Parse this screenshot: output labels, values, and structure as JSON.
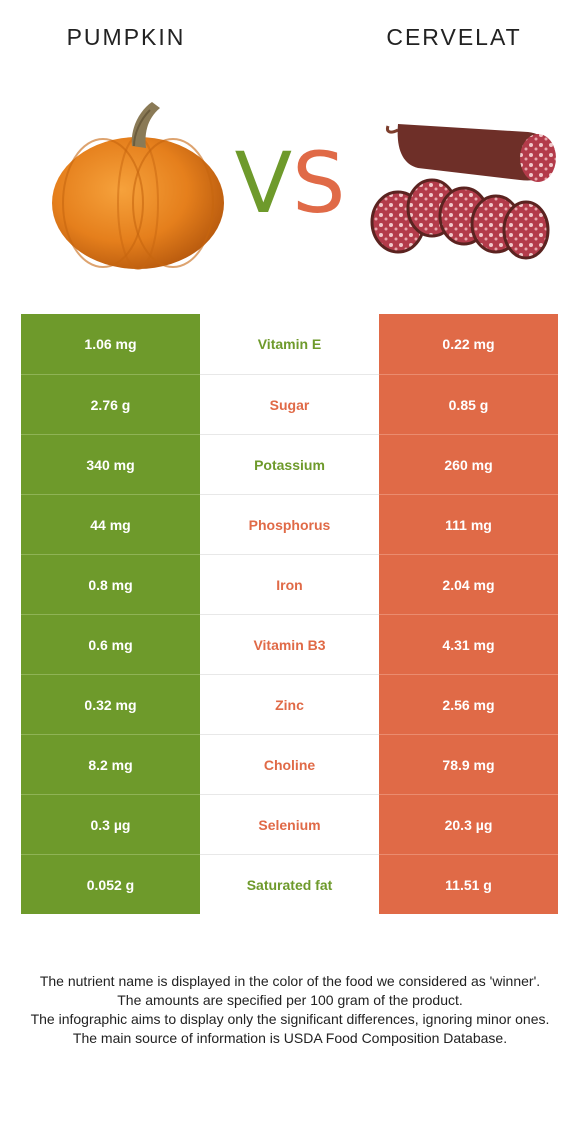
{
  "header": {
    "left_food": "PUMPKIN",
    "right_food": "CERVELAT",
    "vs_v": "V",
    "vs_s": "S"
  },
  "colors": {
    "left_winner": "#6e9a2b",
    "right_winner": "#e06a47"
  },
  "rows": [
    {
      "left": "1.06 mg",
      "nutrient": "Vitamin E",
      "right": "0.22 mg",
      "winner": "left"
    },
    {
      "left": "2.76 g",
      "nutrient": "Sugar",
      "right": "0.85 g",
      "winner": "right"
    },
    {
      "left": "340 mg",
      "nutrient": "Potassium",
      "right": "260 mg",
      "winner": "left"
    },
    {
      "left": "44 mg",
      "nutrient": "Phosphorus",
      "right": "111 mg",
      "winner": "right"
    },
    {
      "left": "0.8 mg",
      "nutrient": "Iron",
      "right": "2.04 mg",
      "winner": "right"
    },
    {
      "left": "0.6 mg",
      "nutrient": "Vitamin B3",
      "right": "4.31 mg",
      "winner": "right"
    },
    {
      "left": "0.32 mg",
      "nutrient": "Zinc",
      "right": "2.56 mg",
      "winner": "right"
    },
    {
      "left": "8.2 mg",
      "nutrient": "Choline",
      "right": "78.9 mg",
      "winner": "right"
    },
    {
      "left": "0.3 µg",
      "nutrient": "Selenium",
      "right": "20.3 µg",
      "winner": "right"
    },
    {
      "left": "0.052 g",
      "nutrient": "Saturated fat",
      "right": "11.51 g",
      "winner": "left"
    }
  ],
  "footer": {
    "line1": "The nutrient name is displayed in the color of the food we considered as 'winner'.",
    "line2": "The amounts are specified per 100 gram of the product.",
    "line3": "The infographic aims to display only the significant differences, ignoring minor ones.",
    "line4": "The main source of information is USDA Food Composition Database."
  }
}
